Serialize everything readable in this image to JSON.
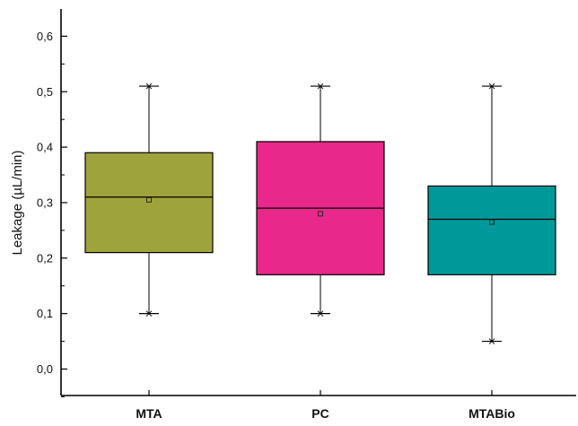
{
  "chart_data": {
    "type": "box",
    "title": "",
    "xlabel": "",
    "ylabel": "Leakage (µL/min)",
    "ylim": [
      -0.05,
      0.65
    ],
    "yticks": [
      0.0,
      0.1,
      0.2,
      0.3,
      0.4,
      0.5,
      0.6
    ],
    "ytick_labels": [
      "0,0",
      "0,1",
      "0,2",
      "0,3",
      "0,4",
      "0,5",
      "0,6"
    ],
    "grid": false,
    "legend": "none",
    "categories": [
      "MTA",
      "PC",
      "MTABio"
    ],
    "boxes": [
      {
        "category": "MTA",
        "whisker_min": 0.1,
        "q1": 0.21,
        "median": 0.31,
        "q3": 0.39,
        "whisker_max": 0.51,
        "mean": 0.305,
        "color": "#9fa33c"
      },
      {
        "category": "PC",
        "whisker_min": 0.1,
        "q1": 0.17,
        "median": 0.29,
        "q3": 0.41,
        "whisker_max": 0.51,
        "mean": 0.28,
        "color": "#e8288a"
      },
      {
        "category": "MTABio",
        "whisker_min": 0.05,
        "q1": 0.17,
        "median": 0.27,
        "q3": 0.33,
        "whisker_max": 0.51,
        "mean": 0.265,
        "color": "#009999"
      }
    ]
  }
}
